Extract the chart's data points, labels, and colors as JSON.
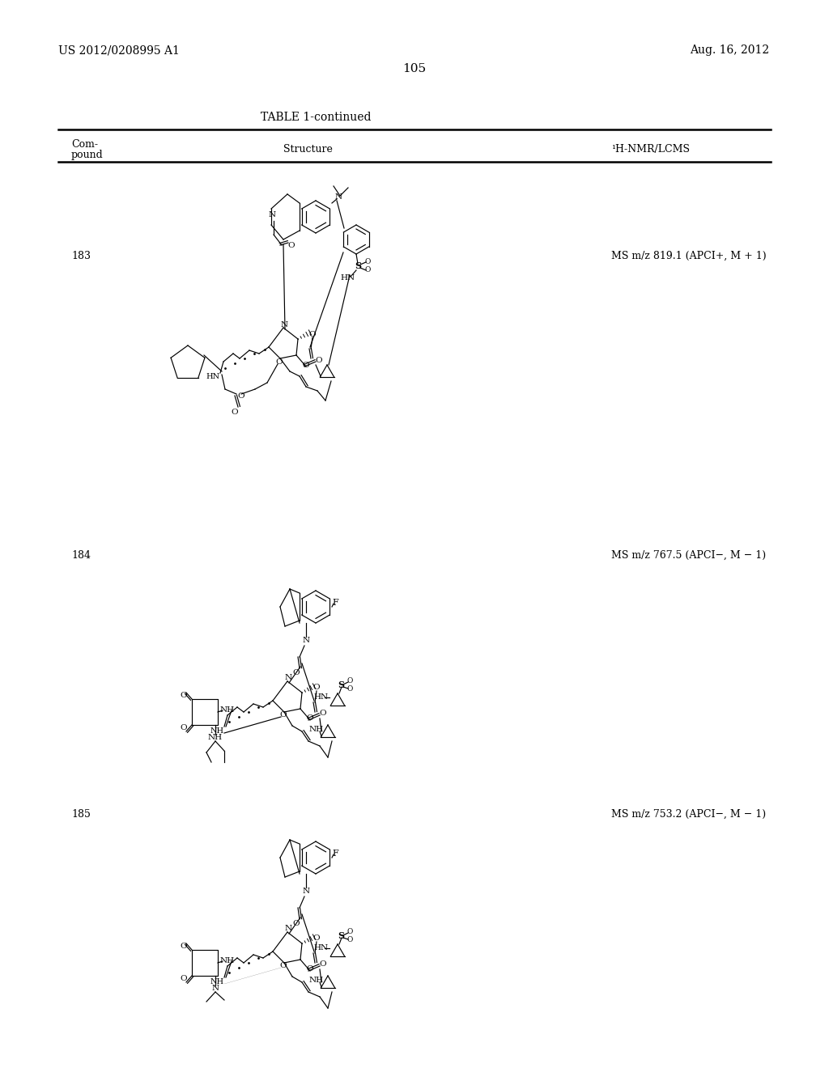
{
  "background_color": "#ffffff",
  "header_left": "US 2012/0208995 A1",
  "header_right": "Aug. 16, 2012",
  "page_number": "105",
  "table_title": "TABLE 1-continued",
  "col1_header_line1": "Com-",
  "col1_header_line2": "pound",
  "col2_header": "Structure",
  "col3_header": "¹H-NMR/LCMS",
  "compounds": [
    {
      "id": "183",
      "nmr": "MS m/z 819.1 (APCI+, M + 1)"
    },
    {
      "id": "184",
      "nmr": "MS m/z 767.5 (APCI−, M − 1)"
    },
    {
      "id": "185",
      "nmr": "MS m/z 753.2 (APCI−, M − 1)"
    }
  ]
}
